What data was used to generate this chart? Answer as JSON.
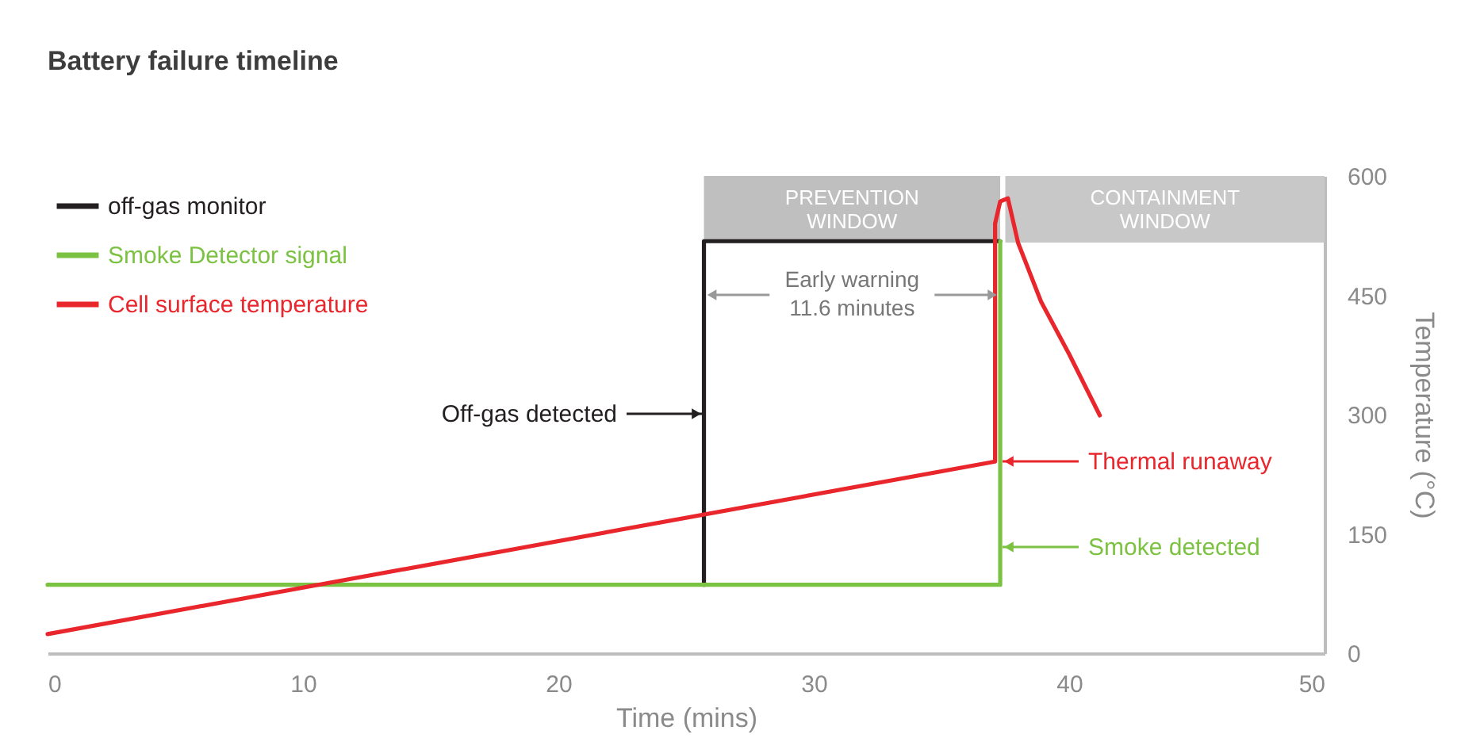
{
  "chart_data": {
    "type": "line",
    "title": "Battery failure timeline",
    "xlabel": "Time (mins)",
    "ylabel": "Temperature (°C)",
    "xlim": [
      0,
      50
    ],
    "xticks": [
      0,
      10,
      20,
      30,
      40,
      50
    ],
    "ylim": [
      0,
      600
    ],
    "yticks": [
      0,
      150,
      300,
      450,
      600
    ],
    "series": [
      {
        "name": "off-gas monitor",
        "color": "#231f20",
        "x": [
          25.7,
          25.7,
          37.3
        ],
        "values": [
          86,
          518,
          518
        ]
      },
      {
        "name": "Smoke Detector signal",
        "color": "#7cc242",
        "x": [
          0,
          37.3,
          37.3
        ],
        "values": [
          86,
          86,
          518
        ]
      },
      {
        "name": "Cell surface temperature",
        "color": "#e8262c",
        "x": [
          0,
          37.1,
          37.1,
          37.3,
          37.6,
          38.0,
          38.9,
          40.0,
          41.2
        ],
        "values": [
          24,
          241,
          540,
          568,
          572,
          516,
          442,
          376,
          299
        ]
      }
    ],
    "bands": [
      {
        "axis": "x",
        "from": 25.7,
        "to": 37.3,
        "label": "PREVENTION WINDOW",
        "color": "#bfbfbf"
      },
      {
        "axis": "x",
        "from": 37.5,
        "to": 50,
        "label": "CONTAINMENT WINDOW",
        "color": "#c8c8c8"
      }
    ],
    "annotations": [
      "Off-gas detected",
      "Smoke detected",
      "Thermal runaway",
      "Early warning\n11.6 minutes"
    ],
    "legend": "top left",
    "grid": false
  }
}
